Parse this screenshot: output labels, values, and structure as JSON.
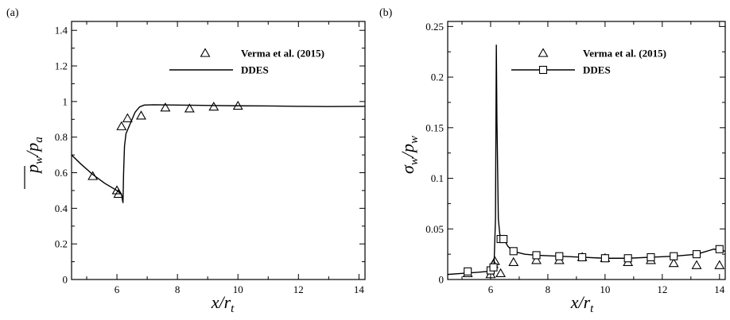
{
  "chart_data": [
    {
      "type": "line",
      "panel_label": "(a)",
      "xlabel": "x/r",
      "xlabel_sub": "t",
      "ylabel": "p",
      "ylabel_sub": "w",
      "ylabel_den": "p",
      "ylabel_den_sub": "a",
      "ylabel_sep": "/",
      "xlim": [
        4.5,
        14.2
      ],
      "ylim": [
        0,
        1.45
      ],
      "xticks": [
        6,
        8,
        10,
        12,
        14
      ],
      "yticks": [
        0,
        0.2,
        0.4,
        0.6,
        0.8,
        1,
        1.2,
        1.4
      ],
      "ytick_labels": [
        "0",
        "0.2",
        "0.4",
        "0.6",
        "0.8",
        "1",
        "1.2",
        "1.4"
      ],
      "legend_position": "top-right",
      "series": [
        {
          "name": "Verma et al. (2015)",
          "marker": "triangle",
          "line": false,
          "x": [
            5.2,
            6.0,
            6.05,
            6.15,
            6.35,
            6.8,
            7.6,
            8.4,
            9.2,
            10.0
          ],
          "y": [
            0.58,
            0.5,
            0.48,
            0.86,
            0.905,
            0.92,
            0.965,
            0.96,
            0.97,
            0.975
          ]
        },
        {
          "name": "DDES",
          "marker": "none",
          "line": true,
          "x": [
            4.5,
            4.8,
            5.2,
            5.6,
            6.0,
            6.15,
            6.2,
            6.22,
            6.25,
            6.3,
            6.4,
            6.5,
            6.6,
            6.75,
            6.9,
            7.2,
            8,
            9,
            10,
            11,
            12,
            13,
            14.2
          ],
          "y": [
            0.7,
            0.65,
            0.59,
            0.54,
            0.5,
            0.48,
            0.43,
            0.6,
            0.75,
            0.82,
            0.86,
            0.9,
            0.94,
            0.97,
            0.98,
            0.982,
            0.98,
            0.978,
            0.976,
            0.975,
            0.973,
            0.972,
            0.973
          ]
        }
      ]
    },
    {
      "type": "line",
      "panel_label": "(b)",
      "xlabel": "x/r",
      "xlabel_sub": "t",
      "ylabel": "σ",
      "ylabel_sub": "w",
      "ylabel_den": "p",
      "ylabel_den_sub": "w",
      "ylabel_sep": "/",
      "xlim": [
        4.5,
        14.2
      ],
      "ylim": [
        0,
        0.255
      ],
      "xticks": [
        6,
        8,
        10,
        12,
        14
      ],
      "yticks": [
        0,
        0.05,
        0.1,
        0.15,
        0.2,
        0.25
      ],
      "ytick_labels": [
        "0",
        "0.05",
        "0.1",
        "0.15",
        "0.2",
        "0.25"
      ],
      "legend_position": "top-right",
      "series": [
        {
          "name": "Verma et al. (2015)",
          "marker": "triangle",
          "line": false,
          "x": [
            5.2,
            6.0,
            6.1,
            6.15,
            6.35,
            6.8,
            7.6,
            8.4,
            9.2,
            10.0,
            10.8,
            11.6,
            12.4,
            13.2,
            14.0
          ],
          "y": [
            0.006,
            0.005,
            0.015,
            0.018,
            0.006,
            0.017,
            0.019,
            0.019,
            0.022,
            0.021,
            0.017,
            0.019,
            0.016,
            0.014,
            0.014
          ]
        },
        {
          "name": "DDES",
          "marker": "square",
          "line": true,
          "x": [
            4.5,
            5.0,
            5.5,
            5.9,
            6.05,
            6.12,
            6.17,
            6.2,
            6.22,
            6.27,
            6.32,
            6.4,
            6.5,
            6.6,
            6.7,
            6.9,
            7.2,
            7.6,
            8.4,
            9.2,
            10.0,
            10.8,
            11.6,
            12.4,
            13.2,
            13.8,
            14.2
          ],
          "y": [
            0.005,
            0.006,
            0.007,
            0.008,
            0.01,
            0.015,
            0.06,
            0.232,
            0.16,
            0.06,
            0.045,
            0.037,
            0.038,
            0.033,
            0.03,
            0.027,
            0.025,
            0.024,
            0.023,
            0.022,
            0.021,
            0.021,
            0.022,
            0.023,
            0.025,
            0.03,
            0.028
          ],
          "marker_x": [
            5.2,
            6.0,
            6.1,
            6.35,
            6.45,
            6.8,
            7.6,
            8.4,
            9.2,
            10.0,
            10.8,
            11.6,
            12.4,
            13.2,
            14.0
          ],
          "marker_y": [
            0.008,
            0.009,
            0.012,
            0.04,
            0.04,
            0.028,
            0.024,
            0.023,
            0.022,
            0.021,
            0.021,
            0.022,
            0.023,
            0.025,
            0.03
          ]
        }
      ]
    }
  ]
}
